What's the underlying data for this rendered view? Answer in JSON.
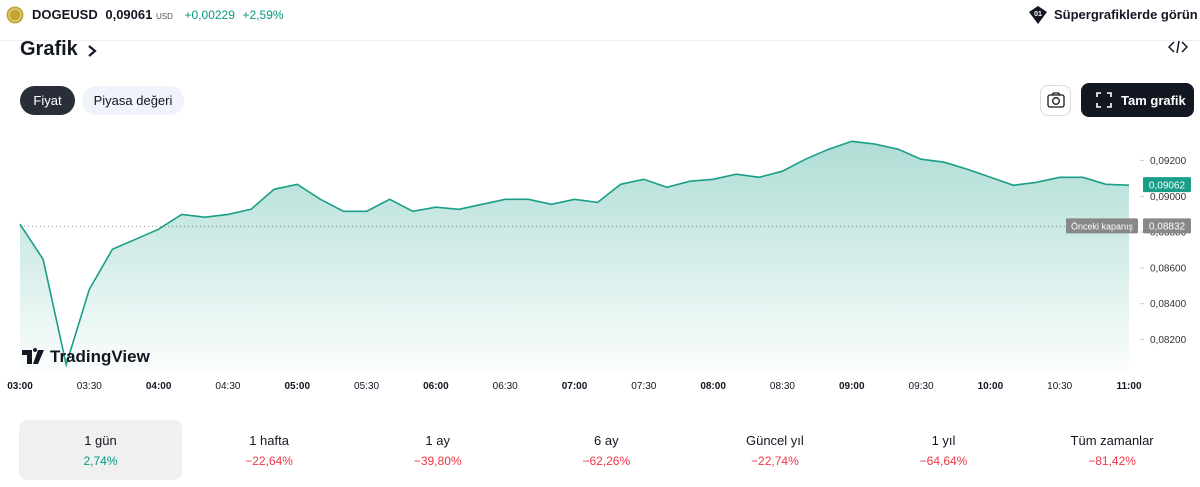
{
  "header": {
    "symbol": "DOGEUSD",
    "price": "0,09061",
    "currency": "USD",
    "change": "+0,00229",
    "change_percent": "+2,59%",
    "link": "Süpergrafiklerde görün"
  },
  "section_title": "Grafik",
  "tabs": [
    "Fiyat",
    "Piyasa değeri"
  ],
  "full_chart_button": "Tam grafik",
  "chart_data": {
    "type": "area",
    "color": "#1a9e87",
    "x": [
      "03:00",
      "03:10",
      "03:20",
      "03:30",
      "03:40",
      "03:50",
      "04:00",
      "04:10",
      "04:20",
      "04:30",
      "04:40",
      "04:50",
      "05:00",
      "05:10",
      "05:20",
      "05:30",
      "05:40",
      "05:50",
      "06:00",
      "06:10",
      "06:20",
      "06:30",
      "06:40",
      "06:50",
      "07:00",
      "07:10",
      "07:20",
      "07:30",
      "07:40",
      "07:50",
      "08:00",
      "08:10",
      "08:20",
      "08:30",
      "08:40",
      "08:50",
      "09:00",
      "09:10",
      "09:20",
      "09:30",
      "09:40",
      "09:50",
      "10:00",
      "10:10",
      "10:20",
      "10:30",
      "10:40",
      "10:50",
      "11:00"
    ],
    "values": [
      0.08844,
      0.08648,
      0.0806,
      0.0848,
      0.08704,
      0.0876,
      0.08816,
      0.08899,
      0.08883,
      0.08899,
      0.08927,
      0.09039,
      0.09067,
      0.08983,
      0.08916,
      0.08916,
      0.08983,
      0.08916,
      0.08939,
      0.08927,
      0.08955,
      0.08983,
      0.08983,
      0.08955,
      0.08983,
      0.08966,
      0.09067,
      0.09095,
      0.0905,
      0.09084,
      0.09095,
      0.09123,
      0.09106,
      0.0914,
      0.09207,
      0.09263,
      0.09307,
      0.09291,
      0.09263,
      0.09207,
      0.0919,
      0.09151,
      0.09106,
      0.09061,
      0.09078,
      0.09106,
      0.09106,
      0.09067,
      0.09062
    ],
    "ylim": [
      0.0803,
      0.0937
    ],
    "yticks": [
      {
        "value": 0.082,
        "label": "0,08200"
      },
      {
        "value": 0.084,
        "label": "0,08400"
      },
      {
        "value": 0.086,
        "label": "0,08600"
      },
      {
        "value": 0.088,
        "label": "0,08800"
      },
      {
        "value": 0.09,
        "label": "0,09000"
      },
      {
        "value": 0.092,
        "label": "0,09200"
      }
    ],
    "xticks": [
      "03:00",
      "03:30",
      "04:00",
      "04:30",
      "05:00",
      "05:30",
      "06:00",
      "06:30",
      "07:00",
      "07:30",
      "08:00",
      "08:30",
      "09:00",
      "09:30",
      "10:00",
      "10:30",
      "11:00"
    ],
    "grid": false,
    "watermark": "TradingView",
    "last_price": {
      "value": 0.09062,
      "label": "0,09062"
    },
    "previous_close": {
      "label": "Önceki kapanış",
      "value": 0.08832,
      "value_label": "0,08832"
    }
  },
  "performance": {
    "selected": 0,
    "periods": [
      {
        "label": "1 gün",
        "change": "2,74%"
      },
      {
        "label": "1 hafta",
        "change": "−22,64%"
      },
      {
        "label": "1 ay",
        "change": "−39,80%"
      },
      {
        "label": "6 ay",
        "change": "−62,26%"
      },
      {
        "label": "Güncel yıl",
        "change": "−22,74%"
      },
      {
        "label": "1 yıl",
        "change": "−64,64%"
      },
      {
        "label": "Tüm zamanlar",
        "change": "−81,42%"
      }
    ]
  }
}
